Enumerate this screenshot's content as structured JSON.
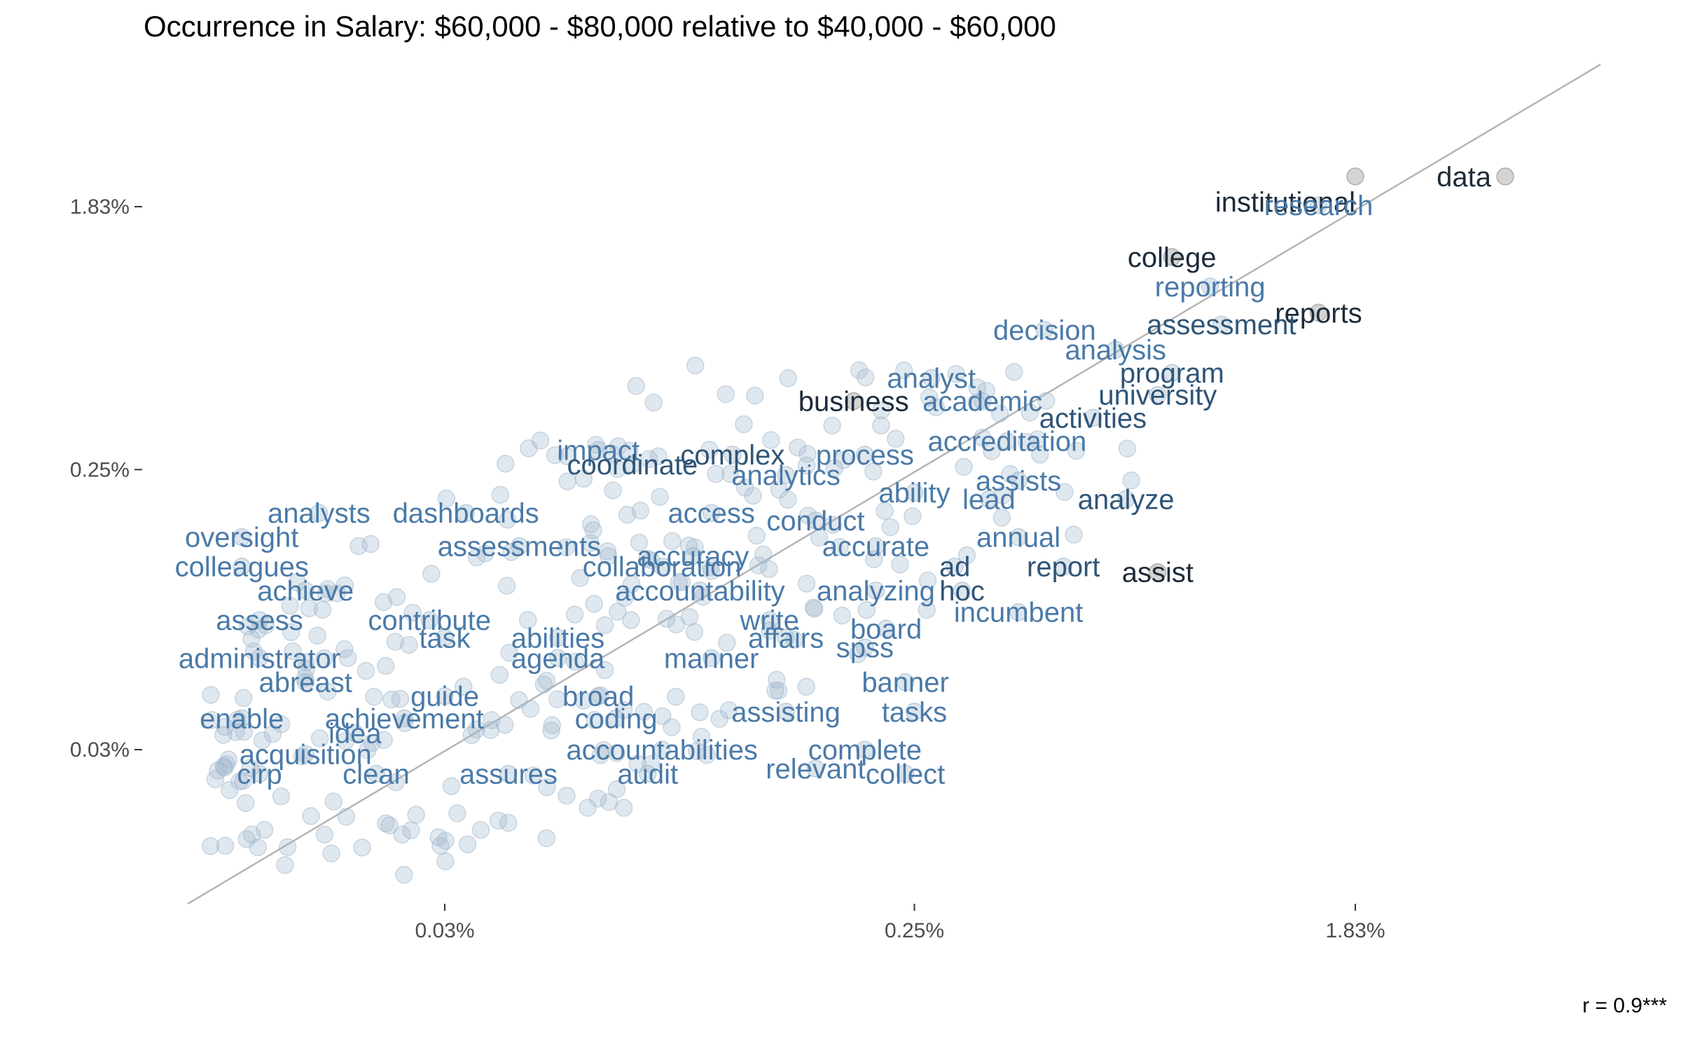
{
  "title": "Occurrence in Salary: $60,000 - $80,000 relative to $40,000 - $60,000",
  "correlation_label": "r =  0.9***",
  "colors": {
    "point": "#9fb6cc",
    "highlight_point": "#a0a0a0",
    "label_strong": "#1d2b3a",
    "label_mid": "#2f5577",
    "label_light": "#4a7aa8",
    "diagonal": "#b5b5b5"
  },
  "chart_data": {
    "type": "scatter",
    "scale": "log",
    "xlabel": "",
    "ylabel": "",
    "x_ticks": [
      "0.03%",
      "0.25%",
      "1.83%"
    ],
    "y_ticks": [
      "1.83%",
      "0.25%",
      "0.03%"
    ],
    "labeled_words": [
      {
        "word": "data",
        "x": 3.6,
        "y": 2.3,
        "tone": "strong"
      },
      {
        "word": "institutional",
        "x": 1.83,
        "y": 2.3,
        "tone": "strong"
      },
      {
        "word": "college",
        "x": 0.8,
        "y": 1.25,
        "tone": "strong"
      },
      {
        "word": "research",
        "x": 1.55,
        "y": 1.85,
        "tone": "light"
      },
      {
        "word": "reporting",
        "x": 0.95,
        "y": 1.0,
        "tone": "light"
      },
      {
        "word": "reports",
        "x": 1.55,
        "y": 0.82,
        "tone": "strong"
      },
      {
        "word": "assessment",
        "x": 1.0,
        "y": 0.75,
        "tone": "mid"
      },
      {
        "word": "decision",
        "x": 0.45,
        "y": 0.72,
        "tone": "light"
      },
      {
        "word": "analysis",
        "x": 0.62,
        "y": 0.62,
        "tone": "light"
      },
      {
        "word": "analyst",
        "x": 0.27,
        "y": 0.5,
        "tone": "light"
      },
      {
        "word": "program",
        "x": 0.8,
        "y": 0.52,
        "tone": "mid"
      },
      {
        "word": "academic",
        "x": 0.34,
        "y": 0.42,
        "tone": "light"
      },
      {
        "word": "university",
        "x": 0.75,
        "y": 0.44,
        "tone": "mid"
      },
      {
        "word": "business",
        "x": 0.19,
        "y": 0.42,
        "tone": "strong"
      },
      {
        "word": "activities",
        "x": 0.56,
        "y": 0.37,
        "tone": "mid"
      },
      {
        "word": "impact",
        "x": 0.06,
        "y": 0.29,
        "tone": "light"
      },
      {
        "word": "complex",
        "x": 0.11,
        "y": 0.28,
        "tone": "mid"
      },
      {
        "word": "process",
        "x": 0.2,
        "y": 0.28,
        "tone": "light"
      },
      {
        "word": "accreditation",
        "x": 0.38,
        "y": 0.31,
        "tone": "light"
      },
      {
        "word": "coordinate",
        "x": 0.07,
        "y": 0.26,
        "tone": "mid"
      },
      {
        "word": "analytics",
        "x": 0.14,
        "y": 0.24,
        "tone": "light"
      },
      {
        "word": "assists",
        "x": 0.4,
        "y": 0.23,
        "tone": "light"
      },
      {
        "word": "ability",
        "x": 0.25,
        "y": 0.21,
        "tone": "light"
      },
      {
        "word": "lead",
        "x": 0.35,
        "y": 0.2,
        "tone": "light"
      },
      {
        "word": "analyze",
        "x": 0.65,
        "y": 0.2,
        "tone": "mid"
      },
      {
        "word": "analysts",
        "x": 0.017,
        "y": 0.18,
        "tone": "light"
      },
      {
        "word": "dashboards",
        "x": 0.033,
        "y": 0.18,
        "tone": "light"
      },
      {
        "word": "access",
        "x": 0.1,
        "y": 0.18,
        "tone": "light"
      },
      {
        "word": "conduct",
        "x": 0.16,
        "y": 0.17,
        "tone": "light"
      },
      {
        "word": "annual",
        "x": 0.4,
        "y": 0.15,
        "tone": "light"
      },
      {
        "word": "accurate",
        "x": 0.21,
        "y": 0.14,
        "tone": "light"
      },
      {
        "word": "oversight",
        "x": 0.012,
        "y": 0.15,
        "tone": "light"
      },
      {
        "word": "assessments",
        "x": 0.042,
        "y": 0.14,
        "tone": "light"
      },
      {
        "word": "accuracy",
        "x": 0.092,
        "y": 0.13,
        "tone": "light"
      },
      {
        "word": "ad",
        "x": 0.3,
        "y": 0.12,
        "tone": "mid"
      },
      {
        "word": "colleagues",
        "x": 0.012,
        "y": 0.12,
        "tone": "light"
      },
      {
        "word": "collaboration",
        "x": 0.08,
        "y": 0.12,
        "tone": "light"
      },
      {
        "word": "report",
        "x": 0.49,
        "y": 0.12,
        "tone": "mid"
      },
      {
        "word": "assist",
        "x": 0.75,
        "y": 0.115,
        "tone": "strong"
      },
      {
        "word": "achieve",
        "x": 0.016,
        "y": 0.1,
        "tone": "light"
      },
      {
        "word": "accountability",
        "x": 0.095,
        "y": 0.1,
        "tone": "light"
      },
      {
        "word": "analyzing",
        "x": 0.21,
        "y": 0.1,
        "tone": "light"
      },
      {
        "word": "hoc",
        "x": 0.31,
        "y": 0.1,
        "tone": "mid"
      },
      {
        "word": "incumbent",
        "x": 0.4,
        "y": 0.085,
        "tone": "light"
      },
      {
        "word": "assess",
        "x": 0.013,
        "y": 0.08,
        "tone": "light"
      },
      {
        "word": "contribute",
        "x": 0.028,
        "y": 0.08,
        "tone": "light"
      },
      {
        "word": "write",
        "x": 0.13,
        "y": 0.08,
        "tone": "light"
      },
      {
        "word": "board",
        "x": 0.22,
        "y": 0.075,
        "tone": "light"
      },
      {
        "word": "task",
        "x": 0.03,
        "y": 0.07,
        "tone": "light"
      },
      {
        "word": "abilities",
        "x": 0.05,
        "y": 0.07,
        "tone": "light"
      },
      {
        "word": "affairs",
        "x": 0.14,
        "y": 0.07,
        "tone": "light"
      },
      {
        "word": "spss",
        "x": 0.2,
        "y": 0.065,
        "tone": "light"
      },
      {
        "word": "administrator",
        "x": 0.013,
        "y": 0.06,
        "tone": "light"
      },
      {
        "word": "agenda",
        "x": 0.05,
        "y": 0.06,
        "tone": "light"
      },
      {
        "word": "manner",
        "x": 0.1,
        "y": 0.06,
        "tone": "light"
      },
      {
        "word": "abreast",
        "x": 0.016,
        "y": 0.05,
        "tone": "light"
      },
      {
        "word": "banner",
        "x": 0.24,
        "y": 0.05,
        "tone": "light"
      },
      {
        "word": "guide",
        "x": 0.03,
        "y": 0.045,
        "tone": "light"
      },
      {
        "word": "broad",
        "x": 0.06,
        "y": 0.045,
        "tone": "light"
      },
      {
        "word": "assisting",
        "x": 0.14,
        "y": 0.04,
        "tone": "light"
      },
      {
        "word": "tasks",
        "x": 0.25,
        "y": 0.04,
        "tone": "light"
      },
      {
        "word": "enable",
        "x": 0.012,
        "y": 0.038,
        "tone": "light"
      },
      {
        "word": "achievement",
        "x": 0.025,
        "y": 0.038,
        "tone": "light"
      },
      {
        "word": "coding",
        "x": 0.065,
        "y": 0.038,
        "tone": "light"
      },
      {
        "word": "idea",
        "x": 0.02,
        "y": 0.034,
        "tone": "light"
      },
      {
        "word": "accountabilities",
        "x": 0.08,
        "y": 0.03,
        "tone": "light"
      },
      {
        "word": "complete",
        "x": 0.2,
        "y": 0.03,
        "tone": "light"
      },
      {
        "word": "acquisition",
        "x": 0.016,
        "y": 0.029,
        "tone": "light"
      },
      {
        "word": "cirp",
        "x": 0.013,
        "y": 0.025,
        "tone": "light"
      },
      {
        "word": "clean",
        "x": 0.022,
        "y": 0.025,
        "tone": "light"
      },
      {
        "word": "assures",
        "x": 0.04,
        "y": 0.025,
        "tone": "light"
      },
      {
        "word": "audit",
        "x": 0.075,
        "y": 0.025,
        "tone": "light"
      },
      {
        "word": "relevant",
        "x": 0.16,
        "y": 0.026,
        "tone": "light"
      },
      {
        "word": "collect",
        "x": 0.24,
        "y": 0.025,
        "tone": "light"
      }
    ],
    "unlabeled_point_count": 430,
    "diagonal_line": true,
    "grid": false
  }
}
